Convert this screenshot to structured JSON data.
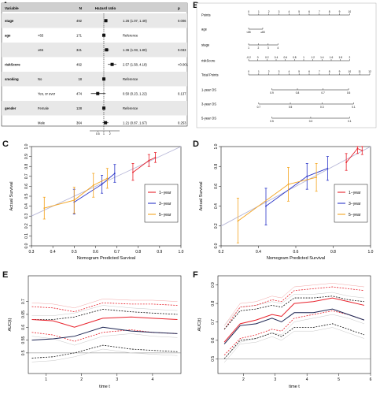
{
  "panels": {
    "A": {
      "letter": "A",
      "headers": {
        "variable": "Variable",
        "n": "N",
        "hr": "Hazard ratio",
        "p": "p"
      },
      "rows": [
        {
          "variable": "stage",
          "level": "",
          "n": "492",
          "est": "1.26 (1.07, 1.49)",
          "p": "0.006",
          "hr": 1.26,
          "lo": 1.07,
          "hi": 1.49
        },
        {
          "variable": "age",
          "level": "<65",
          "n": "171",
          "est": "Reference",
          "p": "",
          "hr": 1.0,
          "lo": 1.0,
          "hi": 1.0
        },
        {
          "variable": "",
          "level": "≥65",
          "n": "321",
          "est": "1.36 (1.03, 1.80)",
          "p": "0.033",
          "hr": 1.36,
          "lo": 1.03,
          "hi": 1.8
        },
        {
          "variable": "riskScore",
          "level": "",
          "n": "492",
          "est": "2.57 (1.58, 4.18)",
          "p": "<0.001",
          "hr": 2.57,
          "lo": 1.58,
          "hi": 4.18
        },
        {
          "variable": "smoking",
          "level": "No",
          "n": "18",
          "est": "Reference",
          "p": "",
          "hr": 1.0,
          "lo": 1.0,
          "hi": 1.0
        },
        {
          "variable": "",
          "level": "Yes, or ever",
          "n": "474",
          "est": "0.50 (0.23, 1.22)",
          "p": "0.137",
          "hr": 0.5,
          "lo": 0.23,
          "hi": 1.22
        },
        {
          "variable": "gender",
          "level": "Female",
          "n": "128",
          "est": "Reference",
          "p": "",
          "hr": 1.0,
          "lo": 1.0,
          "hi": 1.0
        },
        {
          "variable": "",
          "level": "Male",
          "n": "364",
          "est": "1.21 (0.87, 1.67)",
          "p": "0.253",
          "hr": 1.21,
          "lo": 0.87,
          "hi": 1.67
        }
      ],
      "axis_ticks": [
        "0.5",
        "1",
        "2"
      ]
    },
    "B": {
      "letter": "B",
      "rows": [
        {
          "label": "Points",
          "min": 0,
          "max": 10,
          "ticks": [
            "0",
            "1",
            "2",
            "3",
            "4",
            "5",
            "6",
            "7",
            "8",
            "9",
            "10"
          ]
        },
        {
          "label": "age",
          "min": 0,
          "max": 1.4,
          "ticks": [
            "<65",
            "≥65"
          ]
        },
        {
          "label": "stage",
          "min": 0,
          "max": 2.9,
          "ticks": [
            "1",
            "2",
            "3",
            "4"
          ]
        },
        {
          "label": "riskScore",
          "min": 0,
          "max": 10,
          "ticks": [
            "-0.2",
            "0",
            "0.2",
            "0.4",
            "0.6",
            "0.8",
            "1",
            "1.2",
            "1.4",
            "1.6",
            "1.8",
            "2"
          ]
        },
        {
          "label": "Total Points",
          "min": 0,
          "max": 12,
          "ticks": [
            "0",
            "1",
            "2",
            "3",
            "4",
            "5",
            "6",
            "7",
            "8",
            "9",
            "10",
            "11",
            "12"
          ]
        },
        {
          "label": "1-year OS",
          "min": 2.3,
          "max": 9.9,
          "ticks": [
            "0.9",
            "0.8",
            "0.7",
            "0.5"
          ]
        },
        {
          "label": "3-year OS",
          "min": 1.0,
          "max": 10.4,
          "ticks": [
            "0.7",
            "0.5",
            "0.3",
            "0.1"
          ]
        },
        {
          "label": "5-year OS",
          "min": 2.3,
          "max": 10.0,
          "ticks": [
            "0.5",
            "0.3",
            "0.1"
          ]
        }
      ]
    },
    "C": {
      "letter": "C",
      "xlabel": "Nomogram Predicted Survival",
      "ylabel": "Actual Survival",
      "xlim": [
        0.3,
        1.0
      ],
      "ylim": [
        0.0,
        1.0
      ],
      "xticks": [
        "0.3",
        "0.4",
        "0.5",
        "0.6",
        "0.7",
        "0.8",
        "0.9",
        "1.0"
      ],
      "yticks": [
        "0.0",
        "0.1",
        "0.2",
        "0.3",
        "0.4",
        "0.5",
        "0.6",
        "0.7",
        "0.8",
        "0.9",
        "1.0"
      ],
      "legend": [
        "1−year",
        "3−year",
        "5−year"
      ]
    },
    "D": {
      "letter": "D",
      "xlabel": "Nomogram Predicted Survival",
      "ylabel": "Actual Survival",
      "xlim": [
        0.2,
        1.0
      ],
      "ylim": [
        0.0,
        1.0
      ],
      "xticks": [
        "0.2",
        "0.4",
        "0.6",
        "0.8",
        "1.0"
      ],
      "yticks": [
        "0.0",
        "0.2",
        "0.4",
        "0.6",
        "0.8",
        "1.0"
      ],
      "legend": [
        "1−year",
        "3−year",
        "5−year"
      ]
    },
    "E": {
      "letter": "E",
      "xlabel": "time t",
      "ylabel": "AUC(t)",
      "xlim": [
        0.5,
        4.8
      ],
      "ylim": [
        0.42,
        0.8
      ],
      "xticks": [
        "1",
        "2",
        "3",
        "4"
      ],
      "yticks": [
        "0.5",
        "0.55",
        "0.6",
        "0.65",
        "0.7"
      ]
    },
    "F": {
      "letter": "F",
      "xlabel": "time t",
      "ylabel": "AUC(t)",
      "xlim": [
        1.2,
        6.0
      ],
      "ylim": [
        0.42,
        0.95
      ],
      "xticks": [
        "2",
        "3",
        "4",
        "5",
        "6"
      ],
      "yticks": [
        "0.5",
        "0.6",
        "0.7",
        "0.8",
        "0.9"
      ]
    }
  },
  "colors": {
    "red": "#e8212b",
    "blue": "#2a35c8",
    "orange": "#f4a41f",
    "black": "#111111",
    "grey": "#9a9a9a",
    "diag": "#b8b8d8",
    "shade": "#e8e8e8"
  },
  "chart_data": [
    {
      "type": "forest",
      "panel": "A",
      "reference_line": 1,
      "series": [
        {
          "name": "stage",
          "values": [
            1.26
          ],
          "ci": [
            [
              1.07,
              1.49
            ]
          ]
        },
        {
          "name": "age ≥65",
          "values": [
            1.36
          ],
          "ci": [
            [
              1.03,
              1.8
            ]
          ]
        },
        {
          "name": "riskScore",
          "values": [
            2.57
          ],
          "ci": [
            [
              1.58,
              4.18
            ]
          ]
        },
        {
          "name": "smoking Yes, or ever",
          "values": [
            0.5
          ],
          "ci": [
            [
              0.23,
              1.22
            ]
          ]
        },
        {
          "name": "gender Male",
          "values": [
            1.21
          ],
          "ci": [
            [
              0.87,
              1.67
            ]
          ]
        }
      ]
    },
    {
      "type": "line",
      "panel": "C",
      "xlabel": "Nomogram Predicted Survival",
      "ylabel": "Actual Survival",
      "xlim": [
        0.3,
        1.0
      ],
      "ylim": [
        0.0,
        1.0
      ],
      "series": [
        {
          "name": "1−year",
          "x": [
            0.775,
            0.85,
            0.88
          ],
          "y": [
            0.74,
            0.86,
            0.89
          ],
          "lo": [
            0.66,
            0.8,
            0.84
          ],
          "hi": [
            0.83,
            0.92,
            0.94
          ]
        },
        {
          "name": "3−year",
          "x": [
            0.5,
            0.63,
            0.69
          ],
          "y": [
            0.44,
            0.62,
            0.73
          ],
          "lo": [
            0.32,
            0.53,
            0.64
          ],
          "hi": [
            0.57,
            0.71,
            0.82
          ]
        },
        {
          "name": "5−year",
          "x": [
            0.36,
            0.5,
            0.59,
            0.655
          ],
          "y": [
            0.38,
            0.46,
            0.61,
            0.68
          ],
          "lo": [
            0.27,
            0.33,
            0.49,
            0.58
          ],
          "hi": [
            0.49,
            0.59,
            0.73,
            0.78
          ]
        }
      ]
    },
    {
      "type": "line",
      "panel": "D",
      "xlabel": "Nomogram Predicted Survival",
      "ylabel": "Actual Survival",
      "xlim": [
        0.2,
        1.0
      ],
      "ylim": [
        0.0,
        1.0
      ],
      "series": [
        {
          "name": "1−year",
          "x": [
            0.87,
            0.93,
            0.955
          ],
          "y": [
            0.84,
            0.98,
            0.96
          ],
          "lo": [
            0.76,
            0.93,
            0.92
          ],
          "hi": [
            0.93,
            1.0,
            1.0
          ]
        },
        {
          "name": "3−year",
          "x": [
            0.44,
            0.66,
            0.77
          ],
          "y": [
            0.4,
            0.7,
            0.78
          ],
          "lo": [
            0.21,
            0.57,
            0.66
          ],
          "hi": [
            0.58,
            0.83,
            0.9
          ]
        },
        {
          "name": "5−year",
          "x": [
            0.29,
            0.56,
            0.71
          ],
          "y": [
            0.25,
            0.62,
            0.69
          ],
          "lo": [
            0.03,
            0.45,
            0.55
          ],
          "hi": [
            0.48,
            0.79,
            0.83
          ]
        }
      ]
    },
    {
      "type": "line",
      "panel": "E",
      "xlabel": "time t",
      "ylabel": "AUC(t)",
      "x": [
        0.6,
        1.2,
        1.8,
        2.6,
        3.4,
        4.0,
        4.7
      ],
      "series": [
        {
          "name": "red",
          "values": [
            0.63,
            0.625,
            0.6,
            0.635,
            0.64,
            0.635,
            0.63
          ]
        },
        {
          "name": "red-upper",
          "values": [
            0.68,
            0.675,
            0.66,
            0.695,
            0.69,
            0.69,
            0.685
          ]
        },
        {
          "name": "red-lower",
          "values": [
            0.58,
            0.57,
            0.545,
            0.58,
            0.59,
            0.58,
            0.575
          ]
        },
        {
          "name": "black",
          "values": [
            0.55,
            0.555,
            0.565,
            0.6,
            0.585,
            0.58,
            0.575
          ]
        },
        {
          "name": "black-upper",
          "values": [
            0.63,
            0.63,
            0.64,
            0.67,
            0.66,
            0.655,
            0.65
          ]
        },
        {
          "name": "black-lower",
          "values": [
            0.48,
            0.485,
            0.5,
            0.53,
            0.515,
            0.51,
            0.505
          ]
        }
      ]
    },
    {
      "type": "line",
      "panel": "F",
      "xlabel": "time t",
      "ylabel": "AUC(t)",
      "x": [
        1.4,
        1.9,
        2.4,
        2.9,
        3.2,
        3.6,
        4.2,
        4.8,
        5.3,
        5.8
      ],
      "series": [
        {
          "name": "red",
          "values": [
            0.59,
            0.69,
            0.71,
            0.74,
            0.73,
            0.8,
            0.81,
            0.83,
            0.81,
            0.79
          ]
        },
        {
          "name": "red-upper",
          "values": [
            0.66,
            0.78,
            0.79,
            0.82,
            0.81,
            0.87,
            0.88,
            0.89,
            0.88,
            0.87
          ]
        },
        {
          "name": "red-lower",
          "values": [
            0.52,
            0.61,
            0.63,
            0.66,
            0.65,
            0.72,
            0.74,
            0.76,
            0.74,
            0.71
          ]
        },
        {
          "name": "black",
          "values": [
            0.58,
            0.68,
            0.69,
            0.72,
            0.7,
            0.75,
            0.75,
            0.77,
            0.74,
            0.71
          ]
        },
        {
          "name": "black-upper",
          "values": [
            0.66,
            0.76,
            0.77,
            0.79,
            0.78,
            0.83,
            0.83,
            0.84,
            0.82,
            0.81
          ]
        },
        {
          "name": "black-lower",
          "values": [
            0.5,
            0.6,
            0.61,
            0.64,
            0.62,
            0.67,
            0.67,
            0.69,
            0.66,
            0.63
          ]
        }
      ]
    }
  ]
}
